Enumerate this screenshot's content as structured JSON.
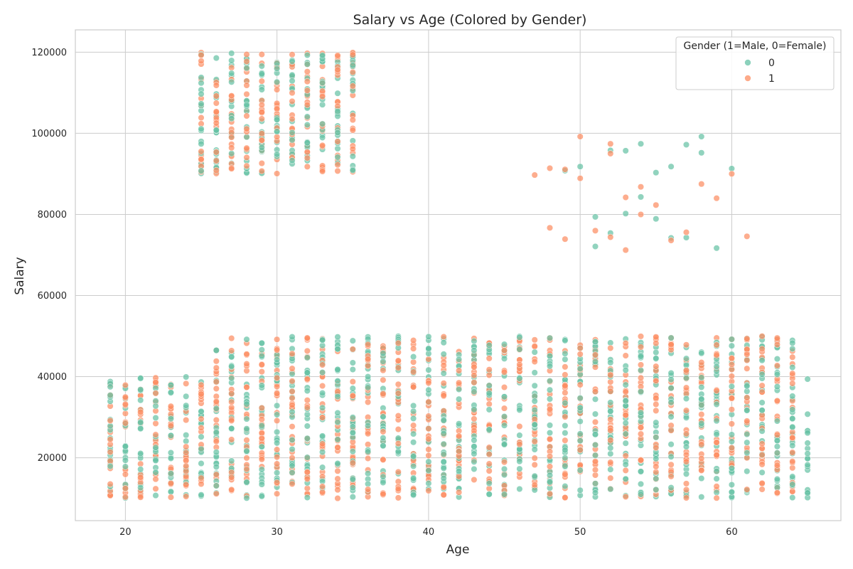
{
  "chart_data": {
    "type": "scatter",
    "title": "Salary vs Age (Colored by Gender)",
    "xlabel": "Age",
    "ylabel": "Salary",
    "xlim": [
      16.7,
      67.2
    ],
    "ylim": [
      4500,
      125500
    ],
    "xticks": [
      20,
      30,
      40,
      50,
      60
    ],
    "yticks": [
      20000,
      40000,
      60000,
      80000,
      100000,
      120000
    ],
    "grid": true,
    "legend": {
      "title": "Gender (1=Male, 0=Female)",
      "placement": "top-right",
      "entries": [
        "0",
        "1"
      ]
    },
    "series": [
      {
        "name": "0",
        "color": "#66c2a5",
        "clusters": [
          {
            "ages": [
              19,
              20,
              21,
              22,
              23,
              24,
              25
            ],
            "salary_range": [
              10000,
              40000
            ]
          },
          {
            "ages": [
              26,
              27,
              28,
              29,
              30,
              31,
              32,
              33,
              34,
              35,
              36,
              37,
              38,
              39,
              40,
              41,
              42,
              43,
              44,
              45,
              46,
              47,
              48,
              49,
              50,
              51,
              52,
              53,
              54,
              55,
              56,
              57,
              58,
              59,
              60,
              61,
              62,
              63,
              64
            ],
            "salary_range": [
              10000,
              50000
            ]
          },
          {
            "ages": [
              65
            ],
            "salary_range": [
              10000,
              40000
            ]
          },
          {
            "ages": [
              25,
              26,
              27,
              28,
              29,
              30,
              31,
              32,
              33,
              34,
              35
            ],
            "salary_range": [
              90000,
              120000
            ]
          }
        ],
        "points": [
          [
            49,
            90800
          ],
          [
            50,
            91800
          ],
          [
            51,
            79400
          ],
          [
            51,
            72100
          ],
          [
            52,
            75400
          ],
          [
            52,
            95800
          ],
          [
            53,
            95700
          ],
          [
            53,
            80200
          ],
          [
            54,
            97400
          ],
          [
            54,
            84300
          ],
          [
            55,
            90300
          ],
          [
            55,
            78900
          ],
          [
            56,
            91800
          ],
          [
            56,
            74200
          ],
          [
            57,
            97200
          ],
          [
            57,
            74300
          ],
          [
            58,
            99200
          ],
          [
            58,
            95200
          ],
          [
            59,
            71700
          ],
          [
            60,
            91300
          ]
        ]
      },
      {
        "name": "1",
        "color": "#fc8d62",
        "clusters": [
          {
            "ages": [
              19,
              20,
              21,
              22,
              23,
              24,
              25
            ],
            "salary_range": [
              10000,
              40000
            ]
          },
          {
            "ages": [
              26,
              27,
              28,
              29,
              30,
              31,
              32,
              33,
              34,
              35,
              36,
              37,
              38,
              39,
              40,
              41,
              42,
              43,
              44,
              45,
              46,
              47,
              48,
              49,
              50,
              51,
              52,
              53,
              54,
              55,
              56,
              57,
              58,
              59,
              60,
              61,
              62,
              63,
              64
            ],
            "salary_range": [
              10000,
              50000
            ]
          },
          {
            "ages": [
              25,
              26,
              27,
              28,
              29,
              30,
              31,
              32,
              33,
              34,
              35
            ],
            "salary_range": [
              90000,
              120000
            ]
          }
        ],
        "points": [
          [
            47,
            89700
          ],
          [
            48,
            91400
          ],
          [
            48,
            76700
          ],
          [
            49,
            91100
          ],
          [
            49,
            73900
          ],
          [
            50,
            99200
          ],
          [
            50,
            88900
          ],
          [
            51,
            76000
          ],
          [
            52,
            97400
          ],
          [
            52,
            95000
          ],
          [
            52,
            74400
          ],
          [
            53,
            84200
          ],
          [
            53,
            71200
          ],
          [
            54,
            86800
          ],
          [
            54,
            80000
          ],
          [
            55,
            82300
          ],
          [
            56,
            73600
          ],
          [
            57,
            75600
          ],
          [
            58,
            87500
          ],
          [
            59,
            84000
          ],
          [
            60,
            90000
          ],
          [
            61,
            74600
          ]
        ]
      }
    ]
  }
}
